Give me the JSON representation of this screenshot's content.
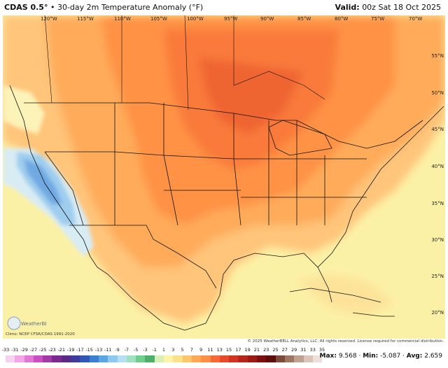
{
  "header": {
    "model": "CDAS 0.5°",
    "separator": "•",
    "product": "30-day 2m Temperature Anomaly (°F)",
    "valid_label": "Valid:",
    "valid_time": "00z Sat 18 Oct 2025"
  },
  "lon_labels": [
    "120°W",
    "115°W",
    "110°W",
    "105°W",
    "100°W",
    "95°W",
    "90°W",
    "85°W",
    "80°W",
    "75°W",
    "70°W"
  ],
  "lat_labels": [
    "55°N",
    "50°N",
    "45°N",
    "40°N",
    "35°N",
    "30°N",
    "25°N",
    "20°N"
  ],
  "credits": {
    "left": "Climo: NCEP CFSR/CDAS 1991-2020",
    "right": "© 2025 WeatherBELL Analytics, LLC. All rights reserved. License required for commercial distribution."
  },
  "logo_text": "WeatherBELL",
  "legend": {
    "ticks": [
      "-33",
      "-31",
      "-29",
      "-27",
      "-25",
      "-23",
      "-21",
      "-19",
      "-17",
      "-15",
      "-13",
      "-11",
      "-9",
      "-7",
      "-5",
      "-3",
      "-1",
      "1",
      "3",
      "5",
      "7",
      "9",
      "11",
      "13",
      "15",
      "17",
      "19",
      "21",
      "23",
      "25",
      "27",
      "29",
      "31",
      "33",
      "35"
    ],
    "colors": [
      "#f7d2f0",
      "#f2a6e6",
      "#e277d6",
      "#c94fc4",
      "#a33aa8",
      "#7b2a8e",
      "#5b2a86",
      "#3e3b9b",
      "#2f57b5",
      "#3a7fd0",
      "#5aa6e3",
      "#8cc8ef",
      "#b7dff3",
      "#9fe0c0",
      "#6ccf8c",
      "#4db06a",
      "#d9efb8",
      "#fdf4a6",
      "#ffe08a",
      "#ffc56b",
      "#ffa955",
      "#ff8f45",
      "#f76a35",
      "#e84a2a",
      "#d13522",
      "#b8261b",
      "#9a1a15",
      "#7a1010",
      "#5e0d0d",
      "#7b4a3a",
      "#9e7663",
      "#c0a191",
      "#dbc4b8",
      "#ece0da"
    ]
  },
  "stats": {
    "max_label": "Max:",
    "max": "9.568",
    "min_label": "Min:",
    "min": "-5.087",
    "avg_label": "Avg:",
    "avg": "2.659"
  }
}
